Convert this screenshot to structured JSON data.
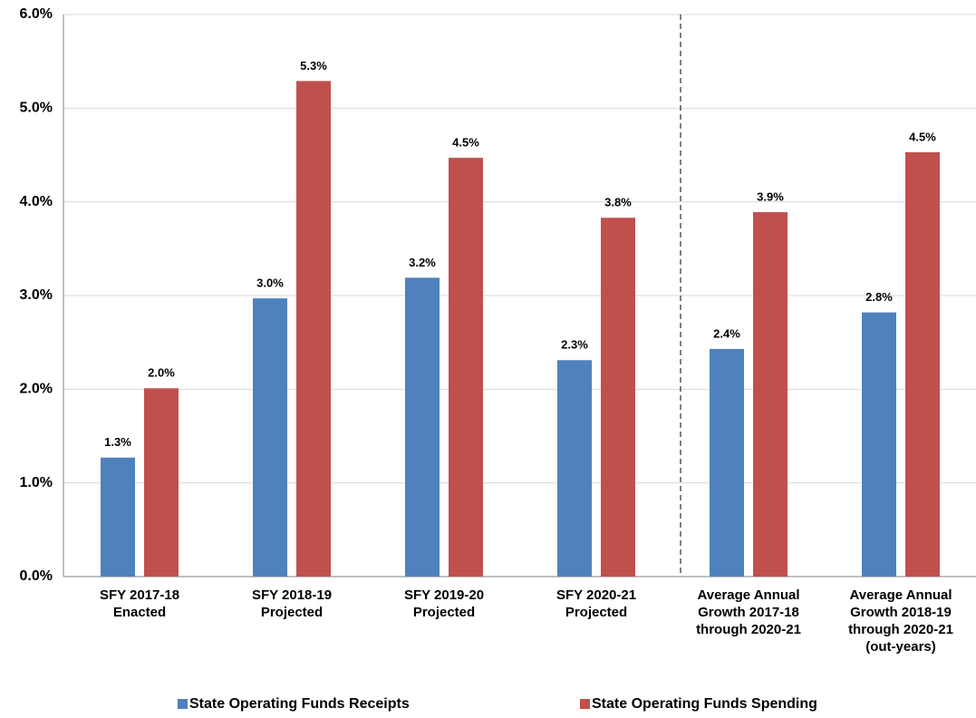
{
  "chart_data": {
    "type": "bar",
    "categories": [
      [
        "SFY 2017-18",
        "Enacted"
      ],
      [
        "SFY 2018-19",
        "Projected"
      ],
      [
        "SFY 2019-20",
        "Projected"
      ],
      [
        "SFY 2020-21",
        "Projected"
      ],
      [
        "Average Annual",
        "Growth 2017-18",
        "through 2020-21"
      ],
      [
        "Average Annual",
        "Growth 2018-19",
        "through 2020-21",
        "(out-years)"
      ]
    ],
    "series": [
      {
        "name": "State Operating Funds Receipts",
        "color": "#4f81bd",
        "values": [
          1.27,
          2.97,
          3.19,
          2.31,
          2.43,
          2.82
        ],
        "value_labels": [
          "1.3%",
          "3.0%",
          "3.2%",
          "2.3%",
          "2.4%",
          "2.8%"
        ]
      },
      {
        "name": "State Operating Funds Spending",
        "color": "#c0504d",
        "values": [
          2.01,
          5.29,
          4.47,
          3.83,
          3.89,
          4.53
        ],
        "value_labels": [
          "2.0%",
          "5.3%",
          "4.5%",
          "3.8%",
          "3.9%",
          "4.5%"
        ]
      }
    ],
    "ylim": [
      0,
      6
    ],
    "yticks": [
      {
        "value": 0,
        "label": "0.0%"
      },
      {
        "value": 1,
        "label": "1.0%"
      },
      {
        "value": 2,
        "label": "2.0%"
      },
      {
        "value": 3,
        "label": "3.0%"
      },
      {
        "value": 4,
        "label": "4.0%"
      },
      {
        "value": 5,
        "label": "5.0%"
      },
      {
        "value": 6,
        "label": "6.0%"
      }
    ],
    "grid": true
  }
}
